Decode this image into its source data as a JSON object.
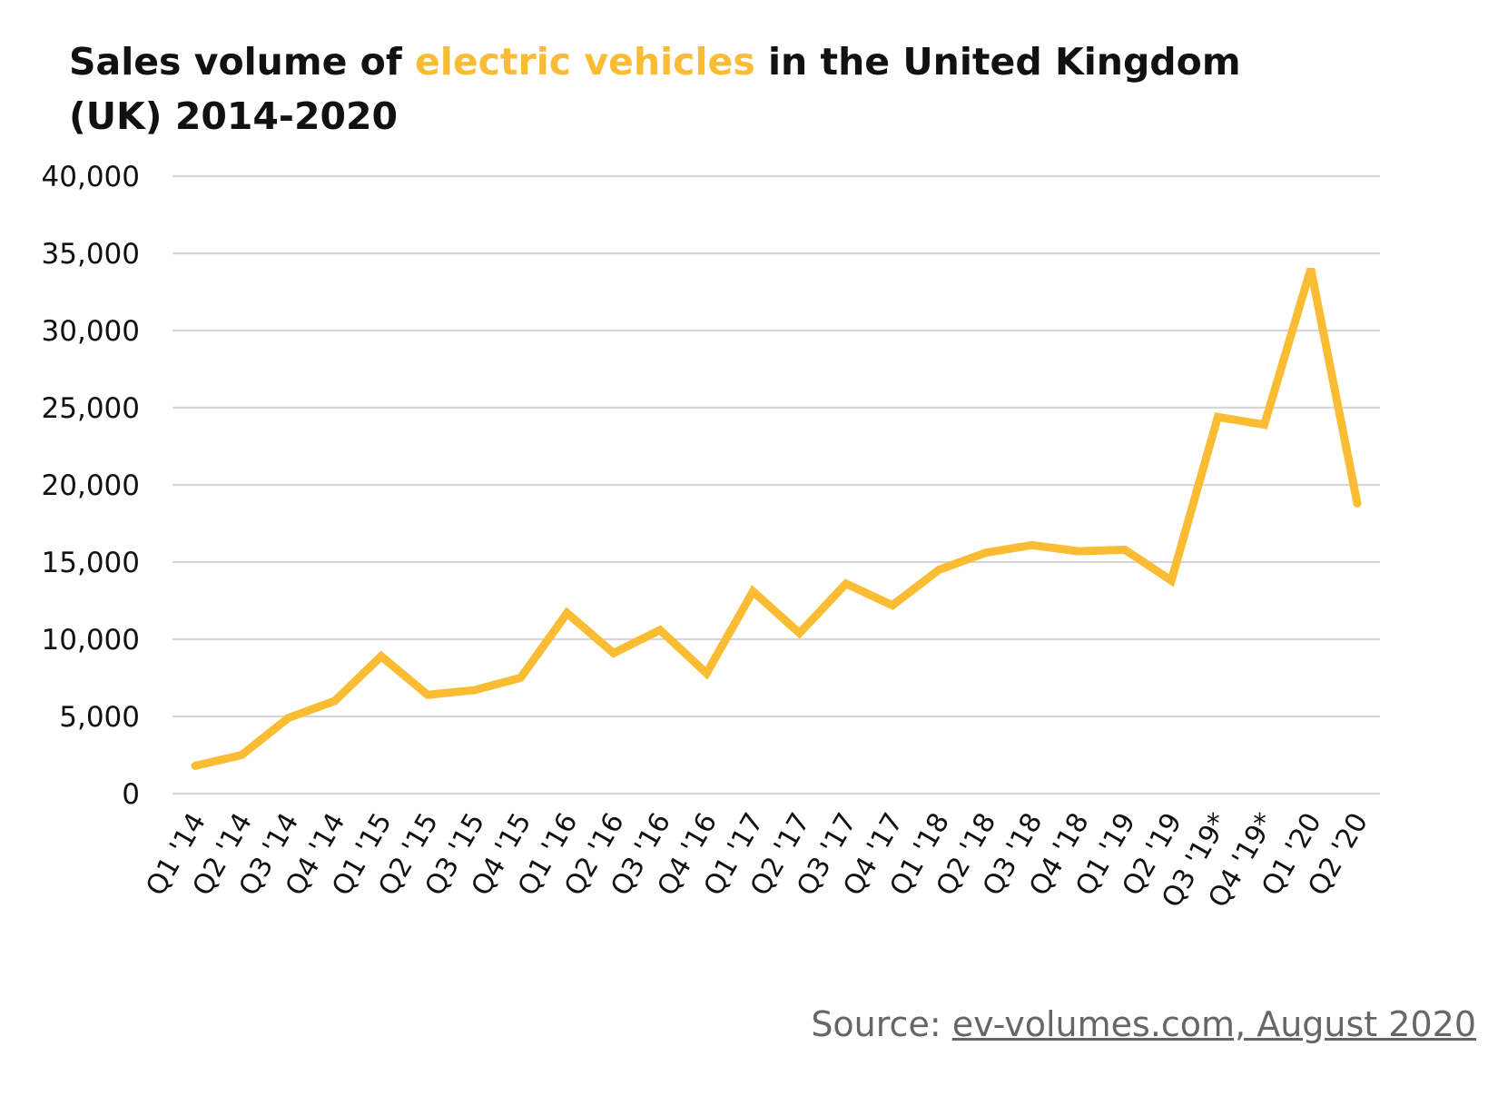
{
  "title": {
    "part1": "Sales volume of ",
    "highlight": "electric vehicles",
    "part2": " in the United Kingdom",
    "line2": "(UK) 2014-2020"
  },
  "source": {
    "label": "Source: ",
    "link_text": "ev-volumes.com, August 2020"
  },
  "colors": {
    "accent": "#f9bc33",
    "grid": "#d6d6d6",
    "text": "#111111",
    "source": "#666666"
  },
  "chart_data": {
    "type": "line",
    "title": "Sales volume of electric vehicles in the United Kingdom (UK) 2014-2020",
    "xlabel": "",
    "ylabel": "",
    "ylim": [
      0,
      40000
    ],
    "yticks": [
      "0",
      "5,000",
      "10,000",
      "15,000",
      "20,000",
      "25,000",
      "30,000",
      "35,000",
      "40,000"
    ],
    "grid": true,
    "legend": "none",
    "categories": [
      "Q1 '14",
      "Q2 '14",
      "Q3 '14",
      "Q4 '14",
      "Q1 '15",
      "Q2 '15",
      "Q3 '15",
      "Q4 '15",
      "Q1 '16",
      "Q2 '16",
      "Q3 '16",
      "Q4 '16",
      "Q1 '17",
      "Q2 '17",
      "Q3 '17",
      "Q4 '17",
      "Q1 '18",
      "Q2 '18",
      "Q3 '18",
      "Q4 '18",
      "Q1 '19",
      "Q2 '19",
      "Q3 '19*",
      "Q4 '19*",
      "Q1 '20",
      "Q2 '20"
    ],
    "series": [
      {
        "values": [
          1800,
          2500,
          4900,
          6000,
          8900,
          6400,
          6700,
          7500,
          11700,
          9100,
          10600,
          7800,
          13100,
          10400,
          13600,
          12200,
          14500,
          15600,
          16100,
          15700,
          15800,
          13800,
          24400,
          23900,
          34000,
          18800
        ]
      }
    ]
  }
}
